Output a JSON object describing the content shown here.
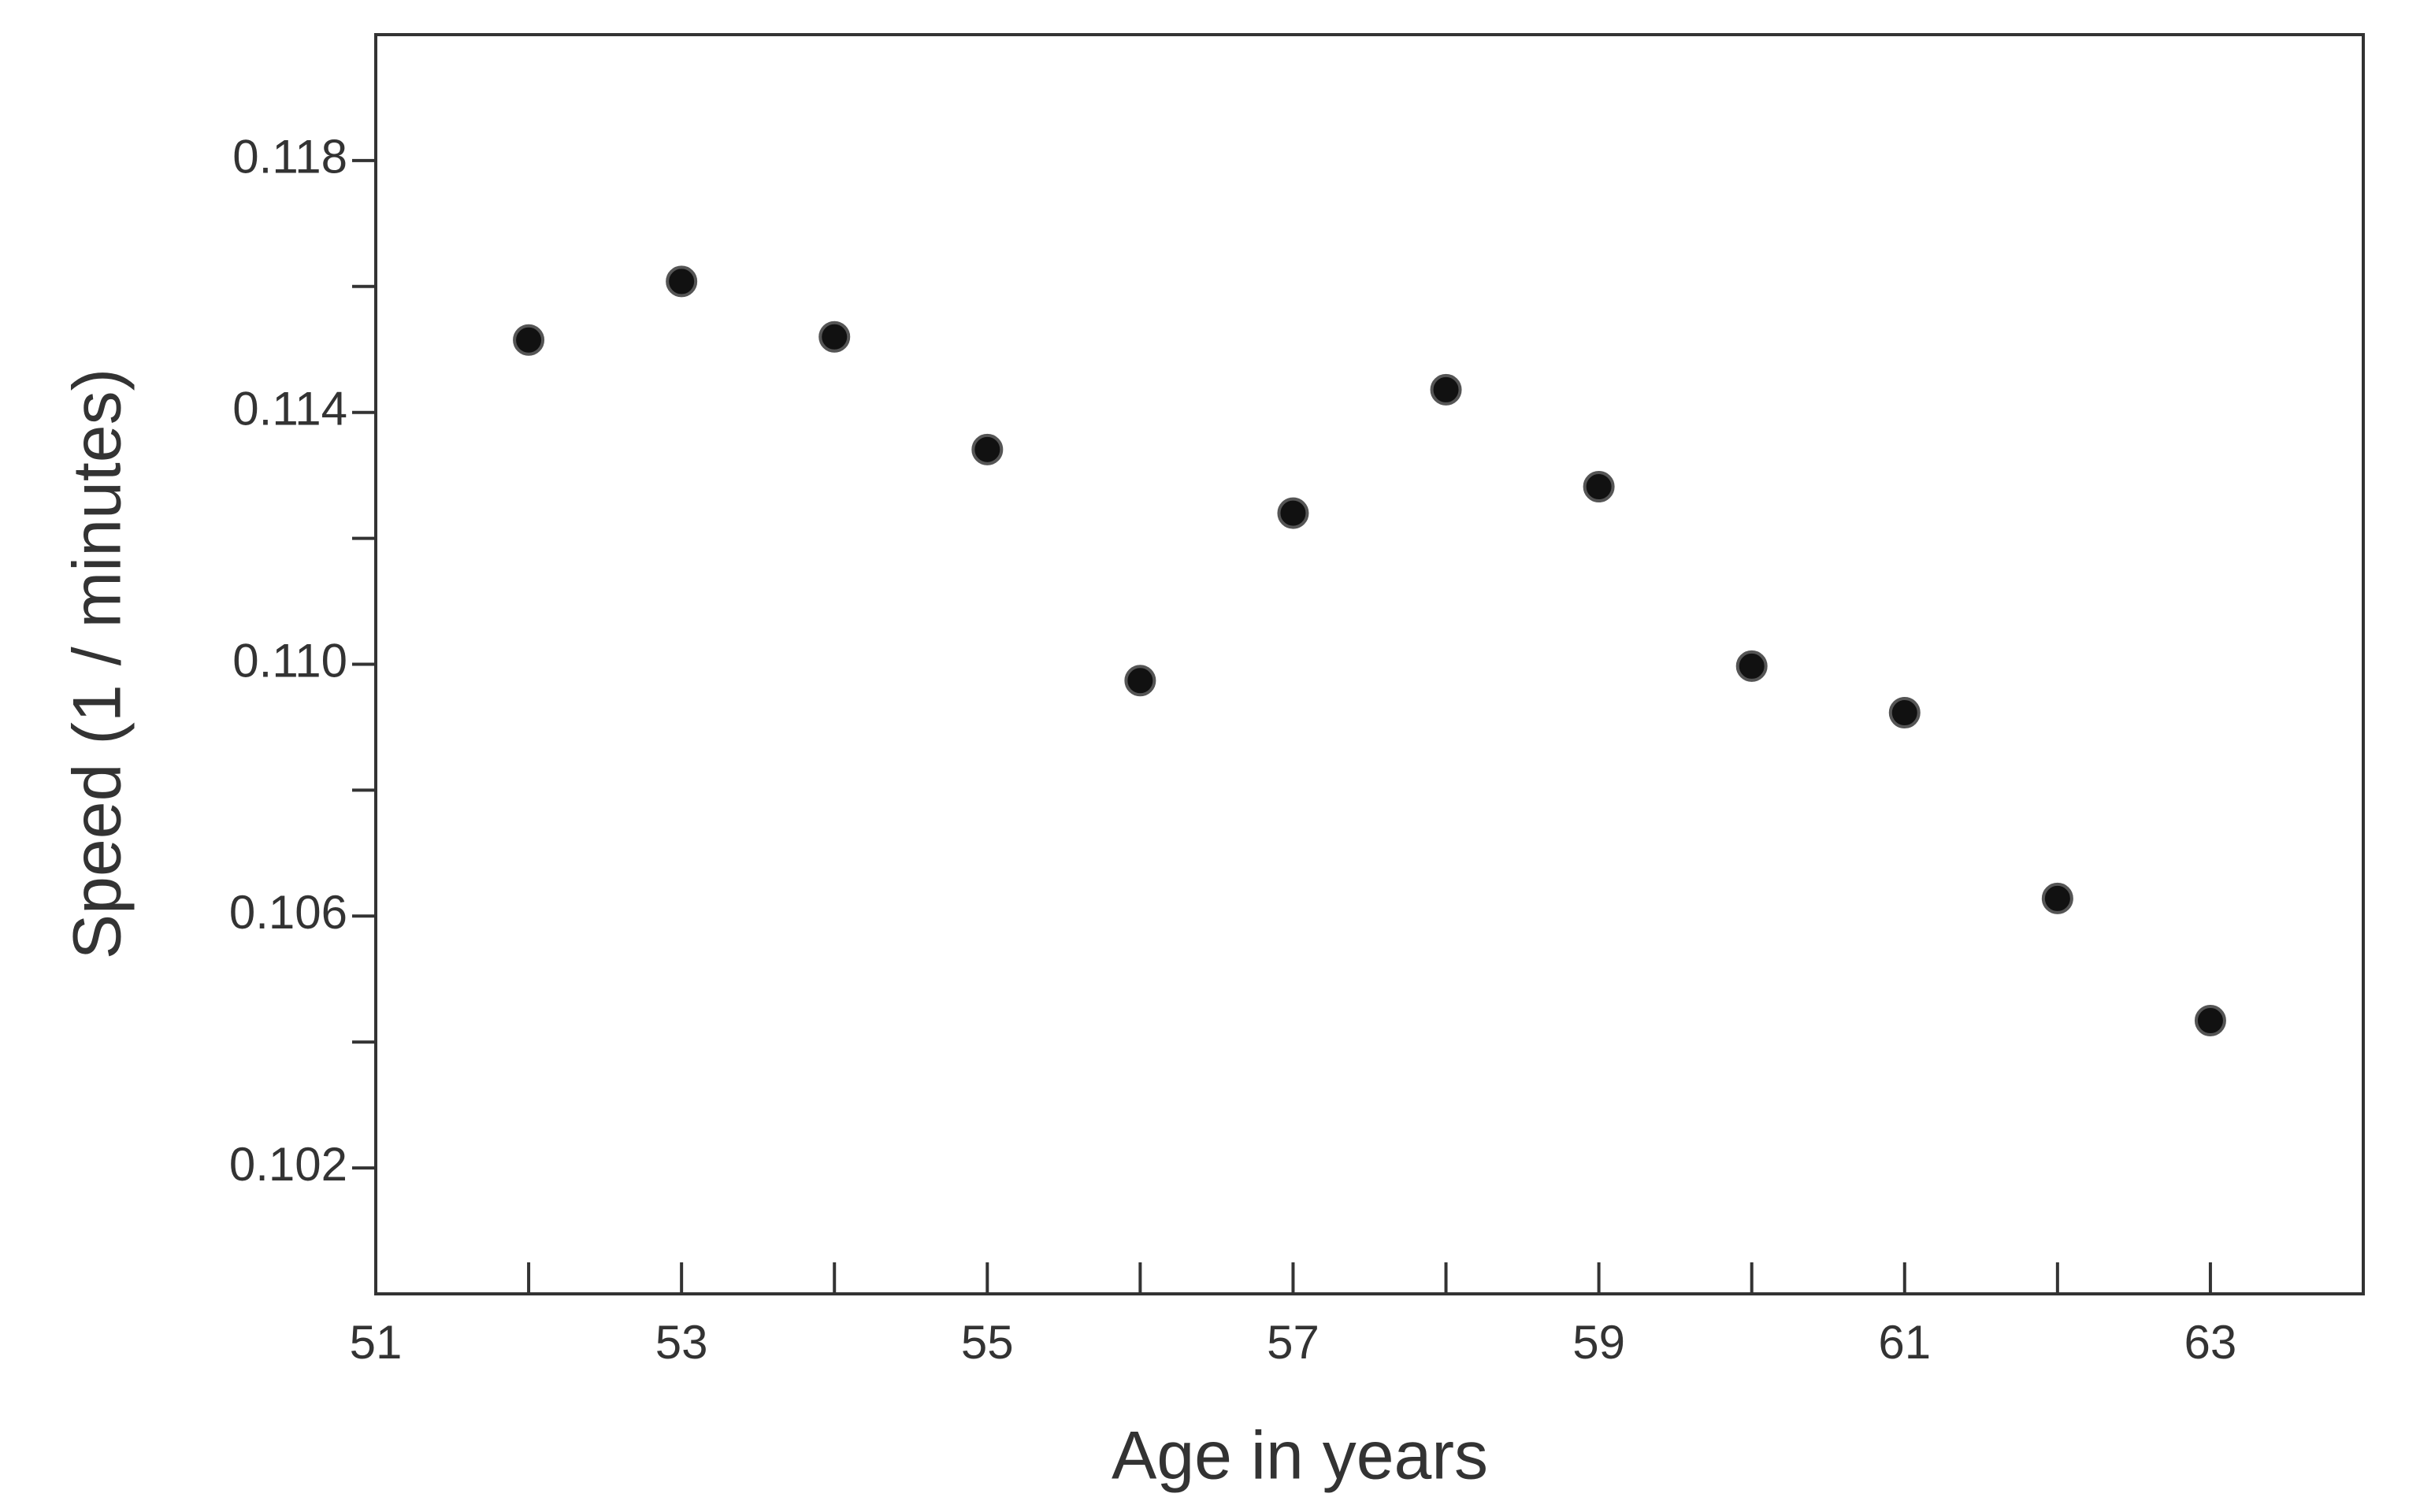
{
  "chart_data": {
    "type": "scatter",
    "x_label": "Age in years",
    "y_label": "Speed (1 / minutes)",
    "x": [
      52,
      53,
      54,
      55,
      56,
      57,
      58,
      59,
      60,
      61,
      62,
      63
    ],
    "series": [
      {
        "color": "#111111",
        "values": [
          0.11515,
          0.11608,
          0.1152,
          0.11341,
          0.10974,
          0.1124,
          0.11436,
          0.11282,
          0.10997,
          0.10923,
          0.10628,
          0.10434
        ]
      }
    ],
    "xlim": [
      51,
      64
    ],
    "xticks": [
      51,
      53,
      55,
      57,
      59,
      61,
      63
    ],
    "xminorticks": [
      52,
      54,
      56,
      58,
      60,
      62
    ],
    "ylim": [
      0.1,
      0.12
    ],
    "yticks": [
      {
        "value": 0.102,
        "label": "0.102"
      },
      {
        "value": 0.106,
        "label": "0.106"
      },
      {
        "value": 0.11,
        "label": "0.110"
      },
      {
        "value": 0.114,
        "label": "0.114"
      },
      {
        "value": 0.118,
        "label": "0.118"
      }
    ],
    "yminorticks": [
      0.104,
      0.108,
      0.112,
      0.116
    ],
    "grid": false
  }
}
